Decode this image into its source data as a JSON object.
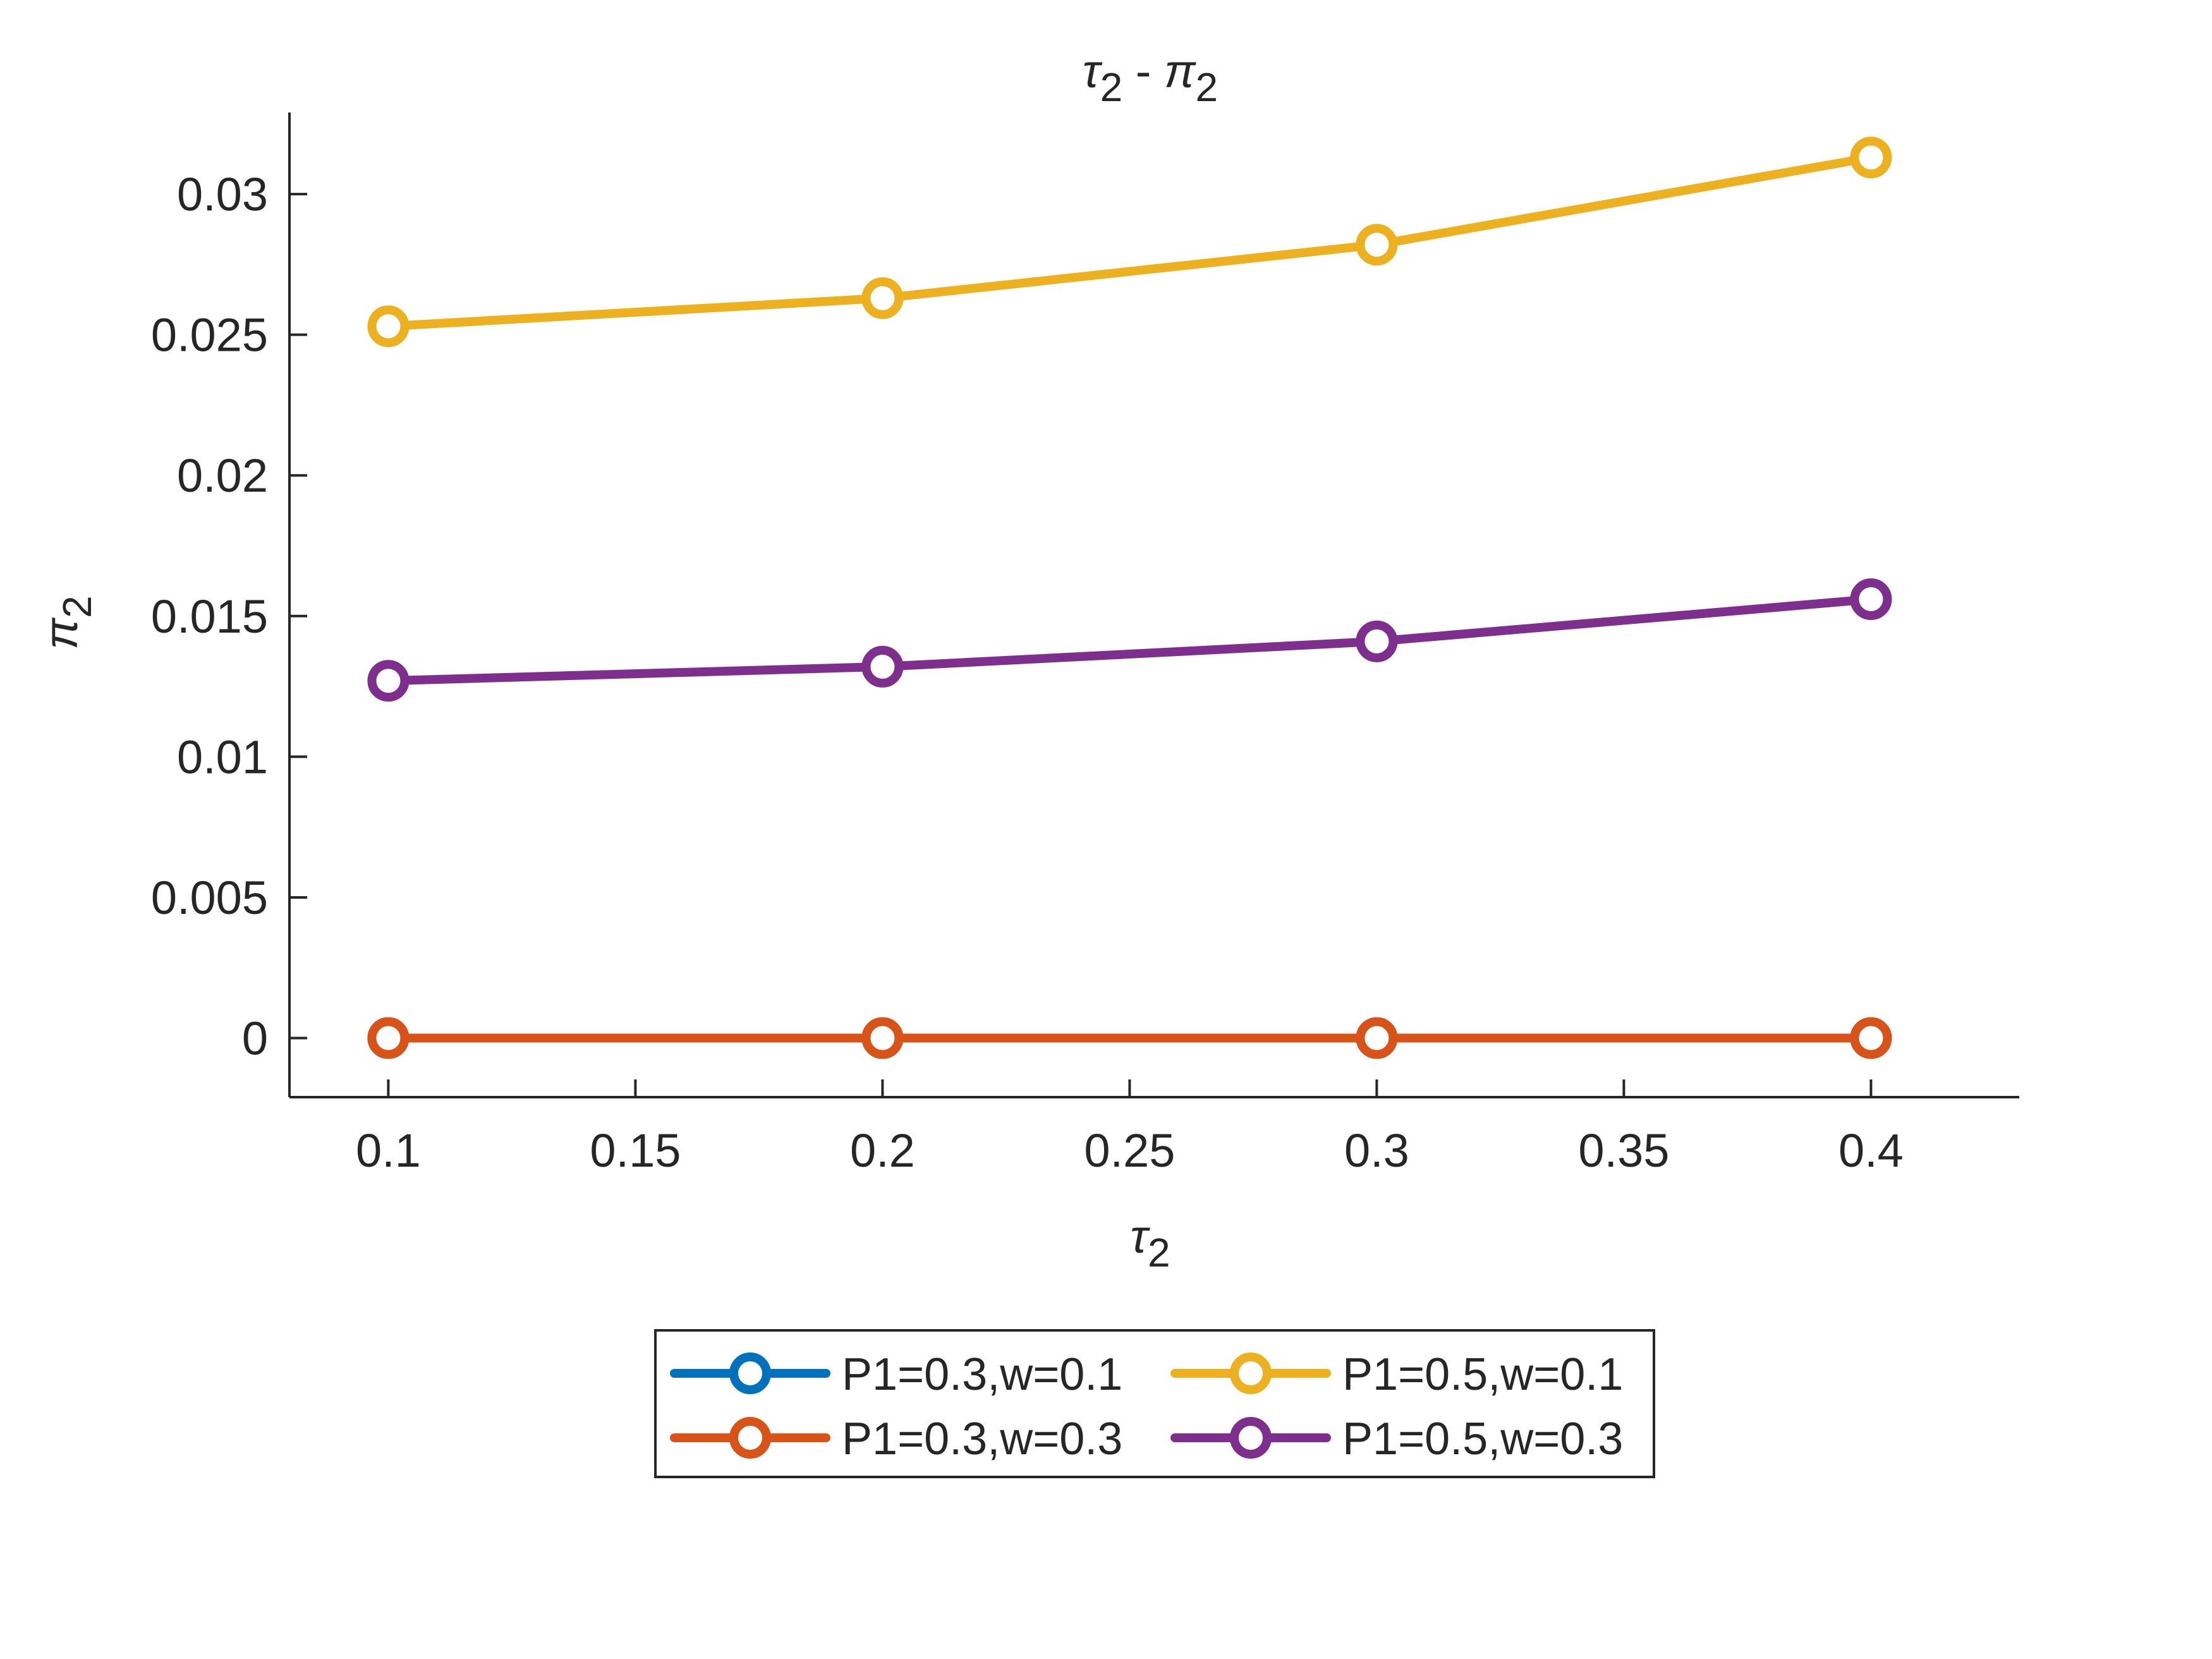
{
  "chart_data": {
    "type": "line",
    "title": {
      "main": "τ",
      "main_sub": "2",
      "sep": " - ",
      "second": "π",
      "second_sub": "2"
    },
    "xlabel": {
      "main": "τ",
      "sub": "2"
    },
    "ylabel": {
      "main": "π",
      "sub": "2"
    },
    "xlim": [
      0.08,
      0.43
    ],
    "ylim": [
      -0.0021,
      0.0329
    ],
    "x_ticks": [
      0.1,
      0.15,
      0.2,
      0.25,
      0.3,
      0.35,
      0.4
    ],
    "x_tick_labels": [
      "0.1",
      "0.15",
      "0.2",
      "0.25",
      "0.3",
      "0.35",
      "0.4"
    ],
    "y_ticks": [
      0,
      0.005,
      0.01,
      0.015,
      0.02,
      0.025,
      0.03
    ],
    "y_tick_labels": [
      "0",
      "0.005",
      "0.01",
      "0.015",
      "0.02",
      "0.025",
      "0.03"
    ],
    "grid": false,
    "legend_position": "bottom-outside",
    "x": [
      0.1,
      0.2,
      0.3,
      0.4
    ],
    "series": [
      {
        "name": "P1=0.3,w=0.1",
        "color": "#0072BD",
        "values": [
          0,
          0,
          0,
          0
        ]
      },
      {
        "name": "P1=0.3,w=0.3",
        "color": "#D95319",
        "values": [
          0,
          0,
          0,
          0
        ]
      },
      {
        "name": "P1=0.5,w=0.1",
        "color": "#EDB120",
        "values": [
          0.0253,
          0.0263,
          0.0282,
          0.0313
        ]
      },
      {
        "name": "P1=0.5,w=0.3",
        "color": "#7E2F8E",
        "values": [
          0.0127,
          0.0132,
          0.0141,
          0.0156
        ]
      }
    ]
  }
}
